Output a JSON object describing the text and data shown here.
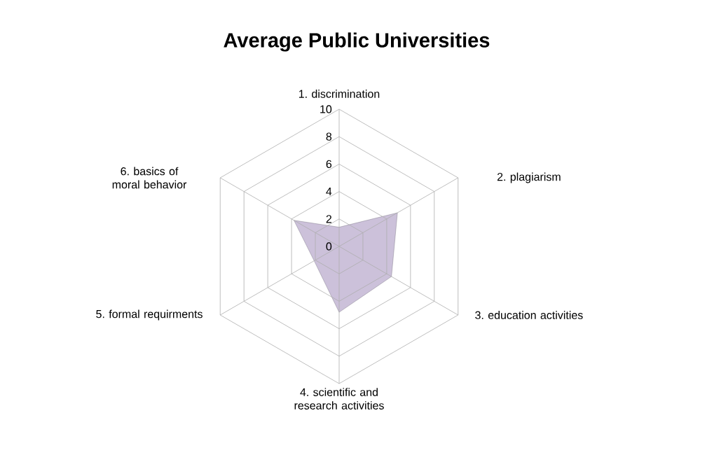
{
  "chart_data": {
    "type": "radar",
    "title": "Average Public Universities",
    "categories": [
      "1. discrimination",
      "2. plagiarism",
      "3. education activities",
      "4. scientific and research activities",
      "5. formal requirments",
      "6. basics of moral behavior"
    ],
    "series": [
      {
        "color": "#ccc1da",
        "values": [
          1.4,
          4.9,
          4.4,
          4.8,
          2.1,
          3.8
        ]
      }
    ],
    "ylim": [
      0,
      10
    ],
    "yticks": [
      0,
      2,
      4,
      6,
      8,
      10
    ],
    "grid": true
  }
}
